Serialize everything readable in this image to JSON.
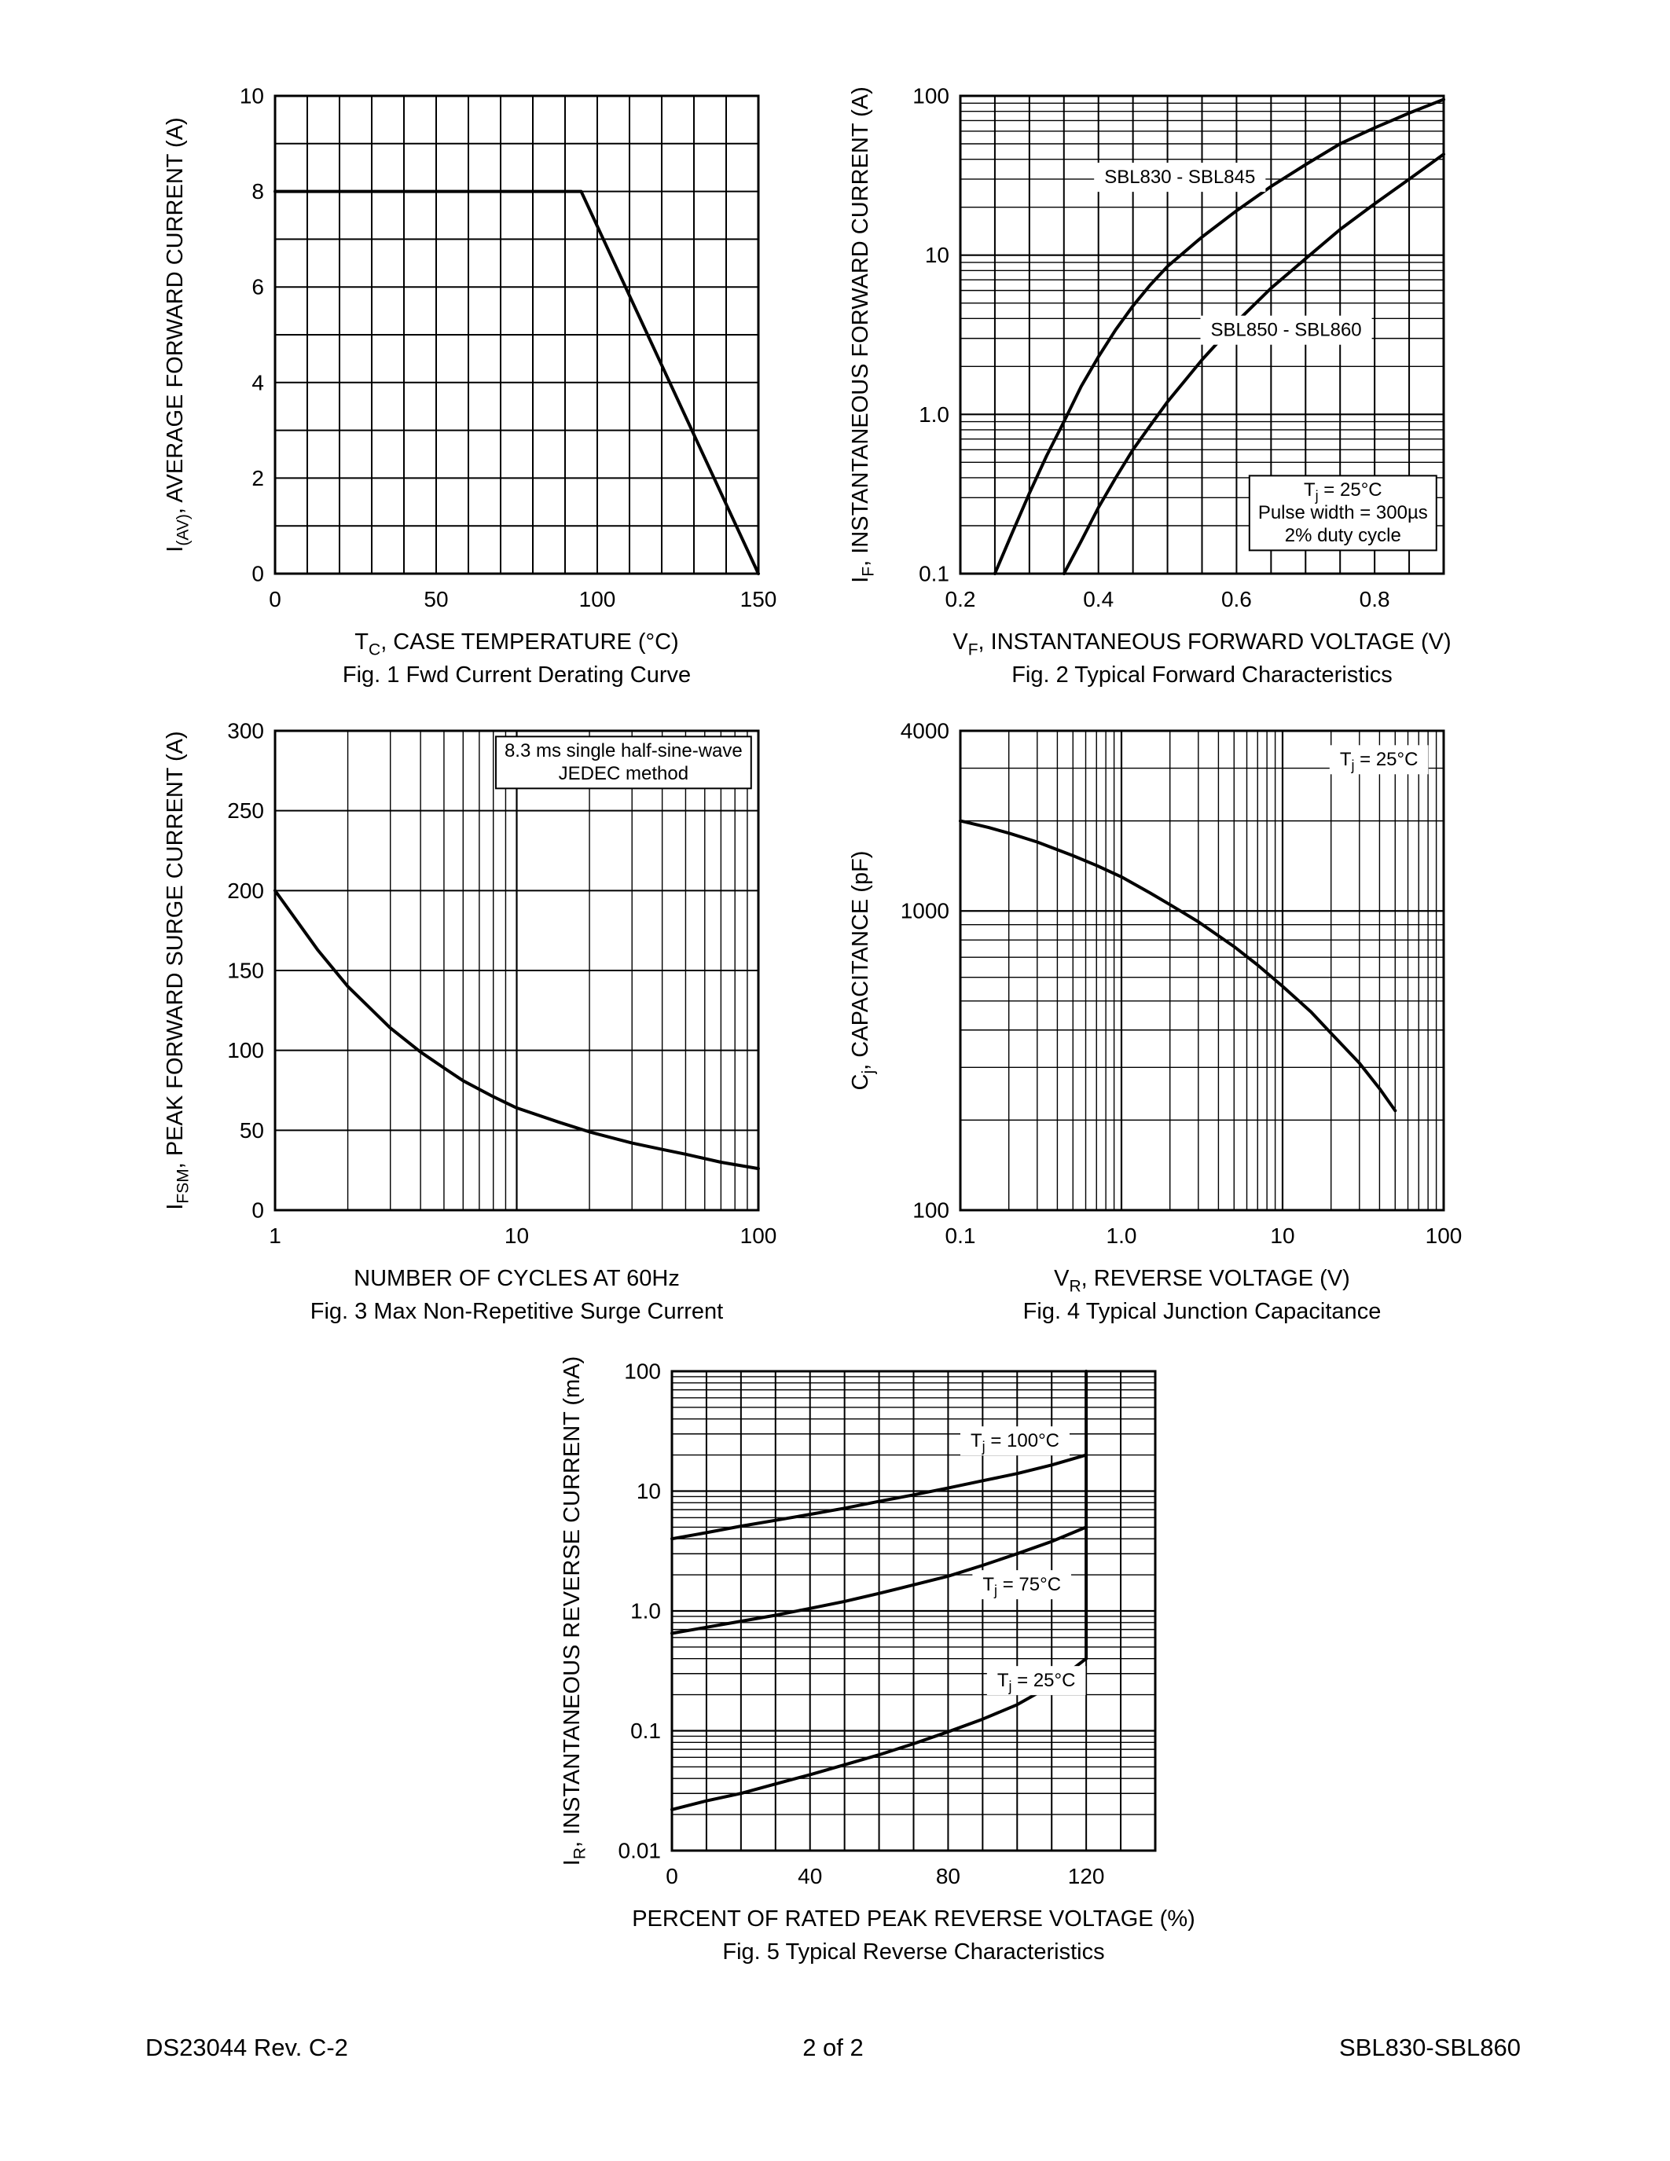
{
  "page": {
    "footer": {
      "left": "DS23044 Rev. C-2",
      "center": "2 of 2",
      "right": "SBL830-SBL860"
    }
  },
  "chart_data": [
    {
      "id": "fig1-derating-curve",
      "type": "line",
      "caption": "Fig. 1  Fwd Current Derating Curve",
      "xlabel": "T_{C}, CASE TEMPERATURE (°C)",
      "ylabel": "I_{(AV)}, AVERAGE FORWARD CURRENT (A)",
      "x": {
        "type": "linear",
        "min": 0,
        "max": 150,
        "grid_step": 10,
        "ticks": [
          {
            "v": 0,
            "label": "0"
          },
          {
            "v": 50,
            "label": "50"
          },
          {
            "v": 100,
            "label": "100"
          },
          {
            "v": 150,
            "label": "150"
          }
        ]
      },
      "y": {
        "type": "linear",
        "min": 0,
        "max": 10,
        "grid_step": 1,
        "ticks": [
          {
            "v": 0,
            "label": "0"
          },
          {
            "v": 2,
            "label": "2"
          },
          {
            "v": 4,
            "label": "4"
          },
          {
            "v": 6,
            "label": "6"
          },
          {
            "v": 8,
            "label": "8"
          },
          {
            "v": 10,
            "label": "10"
          }
        ]
      },
      "series": [
        {
          "name": "derating",
          "points": [
            [
              0,
              8
            ],
            [
              95,
              8
            ],
            [
              150,
              0
            ]
          ]
        }
      ],
      "annotations": []
    },
    {
      "id": "fig2-forward-characteristics",
      "type": "line",
      "caption": "Fig. 2  Typical Forward Characteristics",
      "xlabel": "V_{F}, INSTANTANEOUS FORWARD VOLTAGE (V)",
      "ylabel": "I_{F}, INSTANTANEOUS FORWARD CURRENT (A)",
      "x": {
        "type": "linear",
        "min": 0.2,
        "max": 0.9,
        "grid_step": 0.05,
        "ticks": [
          {
            "v": 0.2,
            "label": "0.2"
          },
          {
            "v": 0.4,
            "label": "0.4"
          },
          {
            "v": 0.6,
            "label": "0.6"
          },
          {
            "v": 0.8,
            "label": "0.8"
          }
        ]
      },
      "y": {
        "type": "log",
        "min": 0.1,
        "max": 100,
        "ticks": [
          {
            "v": 0.1,
            "label": "0.1"
          },
          {
            "v": 1,
            "label": "1.0"
          },
          {
            "v": 10,
            "label": "10"
          },
          {
            "v": 100,
            "label": "100"
          }
        ]
      },
      "series": [
        {
          "name": "SBL830 - SBL845",
          "points": [
            [
              0.25,
              0.1
            ],
            [
              0.275,
              0.18
            ],
            [
              0.3,
              0.32
            ],
            [
              0.325,
              0.55
            ],
            [
              0.35,
              0.9
            ],
            [
              0.375,
              1.5
            ],
            [
              0.4,
              2.3
            ],
            [
              0.425,
              3.4
            ],
            [
              0.45,
              4.8
            ],
            [
              0.475,
              6.5
            ],
            [
              0.5,
              8.5
            ],
            [
              0.55,
              13
            ],
            [
              0.6,
              19
            ],
            [
              0.65,
              27
            ],
            [
              0.7,
              37
            ],
            [
              0.75,
              50
            ],
            [
              0.8,
              63
            ],
            [
              0.85,
              78
            ],
            [
              0.9,
              95
            ]
          ]
        },
        {
          "name": "SBL850 - SBL860",
          "points": [
            [
              0.35,
              0.1
            ],
            [
              0.375,
              0.16
            ],
            [
              0.4,
              0.26
            ],
            [
              0.425,
              0.4
            ],
            [
              0.45,
              0.6
            ],
            [
              0.475,
              0.85
            ],
            [
              0.5,
              1.2
            ],
            [
              0.55,
              2.2
            ],
            [
              0.6,
              3.8
            ],
            [
              0.65,
              6.2
            ],
            [
              0.7,
              9.5
            ],
            [
              0.75,
              14.5
            ],
            [
              0.8,
              21
            ],
            [
              0.85,
              30
            ],
            [
              0.9,
              43
            ]
          ]
        }
      ],
      "annotations": [
        {
          "lines": [
            "SBL830 - SBL845"
          ],
          "fx": 0.28,
          "fy": 0.14,
          "align": "left",
          "bg": true
        },
        {
          "lines": [
            "SBL850 - SBL860"
          ],
          "fx": 0.5,
          "fy": 0.46,
          "align": "left",
          "bg": true
        },
        {
          "lines": [
            "T_{j} = 25°C",
            "Pulse width = 300µs",
            "2% duty cycle"
          ],
          "fx": 0.985,
          "fy": 0.795,
          "align": "right",
          "boxed": true
        }
      ]
    },
    {
      "id": "fig3-surge-current",
      "type": "line",
      "caption": "Fig. 3  Max Non-Repetitive Surge Current",
      "xlabel": "NUMBER OF CYCLES AT 60Hz",
      "ylabel": "I_{FSM}, PEAK FORWARD SURGE CURRENT (A)",
      "x": {
        "type": "log",
        "min": 1,
        "max": 100,
        "ticks": [
          {
            "v": 1,
            "label": "1"
          },
          {
            "v": 10,
            "label": "10"
          },
          {
            "v": 100,
            "label": "100"
          }
        ]
      },
      "y": {
        "type": "linear",
        "min": 0,
        "max": 300,
        "grid_step": 50,
        "ticks": [
          {
            "v": 0,
            "label": "0"
          },
          {
            "v": 50,
            "label": "50"
          },
          {
            "v": 100,
            "label": "100"
          },
          {
            "v": 150,
            "label": "150"
          },
          {
            "v": 200,
            "label": "200"
          },
          {
            "v": 250,
            "label": "250"
          },
          {
            "v": 300,
            "label": "300"
          }
        ]
      },
      "series": [
        {
          "name": "surge",
          "points": [
            [
              1,
              200
            ],
            [
              1.5,
              163
            ],
            [
              2,
              140
            ],
            [
              3,
              114
            ],
            [
              4,
              99
            ],
            [
              5,
              89
            ],
            [
              6,
              81
            ],
            [
              8,
              71
            ],
            [
              10,
              64
            ],
            [
              15,
              55
            ],
            [
              20,
              49
            ],
            [
              30,
              42
            ],
            [
              40,
              38
            ],
            [
              50,
              35
            ],
            [
              70,
              30
            ],
            [
              100,
              26
            ]
          ]
        }
      ],
      "annotations": [
        {
          "lines": [
            "8.3 ms single half-sine-wave",
            "JEDEC method"
          ],
          "fx": 0.985,
          "fy": 0.012,
          "align": "right",
          "boxed": true
        }
      ]
    },
    {
      "id": "fig4-junction-capacitance",
      "type": "line",
      "caption": "Fig. 4  Typical Junction Capacitance",
      "xlabel": "V_{R}, REVERSE VOLTAGE (V)",
      "ylabel": "C_{j}, CAPACITANCE (pF)",
      "x": {
        "type": "log",
        "min": 0.1,
        "max": 100,
        "ticks": [
          {
            "v": 0.1,
            "label": "0.1"
          },
          {
            "v": 1,
            "label": "1.0"
          },
          {
            "v": 10,
            "label": "10"
          },
          {
            "v": 100,
            "label": "100"
          }
        ]
      },
      "y": {
        "type": "log",
        "min": 100,
        "max": 4000,
        "ticks": [
          {
            "v": 100,
            "label": "100"
          },
          {
            "v": 1000,
            "label": "1000"
          },
          {
            "v": 4000,
            "label": "4000"
          }
        ]
      },
      "series": [
        {
          "name": "capacitance",
          "points": [
            [
              0.1,
              2000
            ],
            [
              0.15,
              1900
            ],
            [
              0.2,
              1820
            ],
            [
              0.3,
              1700
            ],
            [
              0.5,
              1530
            ],
            [
              0.7,
              1420
            ],
            [
              1,
              1300
            ],
            [
              1.5,
              1150
            ],
            [
              2,
              1050
            ],
            [
              3,
              920
            ],
            [
              5,
              760
            ],
            [
              7,
              660
            ],
            [
              10,
              560
            ],
            [
              15,
              460
            ],
            [
              20,
              390
            ],
            [
              30,
              310
            ],
            [
              40,
              255
            ],
            [
              50,
              215
            ]
          ]
        }
      ],
      "annotations": [
        {
          "lines": [
            "T_{j} = 25°C"
          ],
          "fx": 0.965,
          "fy": 0.03,
          "align": "right",
          "bg": true
        }
      ]
    },
    {
      "id": "fig5-reverse-characteristics",
      "type": "line",
      "caption": "Fig. 5  Typical Reverse Characteristics",
      "xlabel": "PERCENT OF RATED PEAK REVERSE VOLTAGE (%)",
      "ylabel": "I_{R}, INSTANTANEOUS REVERSE CURRENT (mA)",
      "x": {
        "type": "linear",
        "min": 0,
        "max": 140,
        "grid_step": 10,
        "ticks": [
          {
            "v": 0,
            "label": "0"
          },
          {
            "v": 40,
            "label": "40"
          },
          {
            "v": 80,
            "label": "80"
          },
          {
            "v": 120,
            "label": "120"
          }
        ]
      },
      "y": {
        "type": "log",
        "min": 0.01,
        "max": 100,
        "ticks": [
          {
            "v": 0.01,
            "label": "0.01"
          },
          {
            "v": 0.1,
            "label": "0.1"
          },
          {
            "v": 1,
            "label": "1.0"
          },
          {
            "v": 10,
            "label": "10"
          },
          {
            "v": 100,
            "label": "100"
          }
        ]
      },
      "series": [
        {
          "name": "Tj = 100°C",
          "points": [
            [
              0,
              4
            ],
            [
              10,
              4.5
            ],
            [
              20,
              5.1
            ],
            [
              30,
              5.7
            ],
            [
              40,
              6.4
            ],
            [
              50,
              7.2
            ],
            [
              60,
              8.2
            ],
            [
              70,
              9.3
            ],
            [
              80,
              10.6
            ],
            [
              90,
              12.2
            ],
            [
              100,
              14
            ],
            [
              110,
              16.5
            ],
            [
              120,
              20
            ]
          ]
        },
        {
          "name": "Tj = 75°C",
          "points": [
            [
              0,
              0.65
            ],
            [
              10,
              0.73
            ],
            [
              20,
              0.82
            ],
            [
              30,
              0.92
            ],
            [
              40,
              1.05
            ],
            [
              50,
              1.2
            ],
            [
              60,
              1.4
            ],
            [
              70,
              1.65
            ],
            [
              80,
              1.95
            ],
            [
              90,
              2.4
            ],
            [
              100,
              3.0
            ],
            [
              110,
              3.8
            ],
            [
              120,
              5.0
            ]
          ]
        },
        {
          "name": "Tj = 25°C",
          "points": [
            [
              0,
              0.022
            ],
            [
              10,
              0.026
            ],
            [
              20,
              0.03
            ],
            [
              30,
              0.036
            ],
            [
              40,
              0.043
            ],
            [
              50,
              0.052
            ],
            [
              60,
              0.063
            ],
            [
              70,
              0.078
            ],
            [
              80,
              0.098
            ],
            [
              90,
              0.125
            ],
            [
              100,
              0.165
            ],
            [
              110,
              0.24
            ],
            [
              120,
              0.4
            ]
          ]
        },
        {
          "name": "breakdown-line",
          "points": [
            [
              120,
              0.4
            ],
            [
              120,
              100
            ]
          ]
        }
      ],
      "annotations": [
        {
          "lines": [
            "T_{j} = 100°C"
          ],
          "fx": 0.6,
          "fy": 0.115,
          "align": "left",
          "bg": true
        },
        {
          "lines": [
            "T_{j} = 75°C"
          ],
          "fx": 0.625,
          "fy": 0.415,
          "align": "left",
          "bg": true
        },
        {
          "lines": [
            "T_{j} = 25°C"
          ],
          "fx": 0.655,
          "fy": 0.615,
          "align": "left",
          "bg": true
        }
      ]
    }
  ]
}
